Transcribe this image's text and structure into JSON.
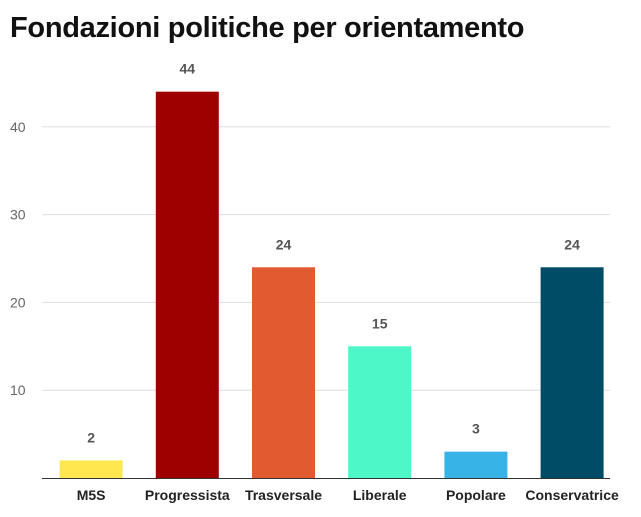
{
  "chart_data": {
    "type": "bar",
    "title": "Fondazioni politiche per orientamento",
    "categories": [
      "M5S",
      "Progressista",
      "Trasversale",
      "Liberale",
      "Popolare",
      "Conservatrice"
    ],
    "values": [
      2,
      44,
      24,
      15,
      3,
      24
    ],
    "colors": [
      "#ffe84f",
      "#9e0000",
      "#e25a30",
      "#4df7c7",
      "#38b3e8",
      "#004c66"
    ],
    "yticks": [
      10,
      20,
      30,
      40
    ],
    "ylim": [
      0,
      50
    ],
    "grid": true,
    "xlabel": "",
    "ylabel": ""
  }
}
